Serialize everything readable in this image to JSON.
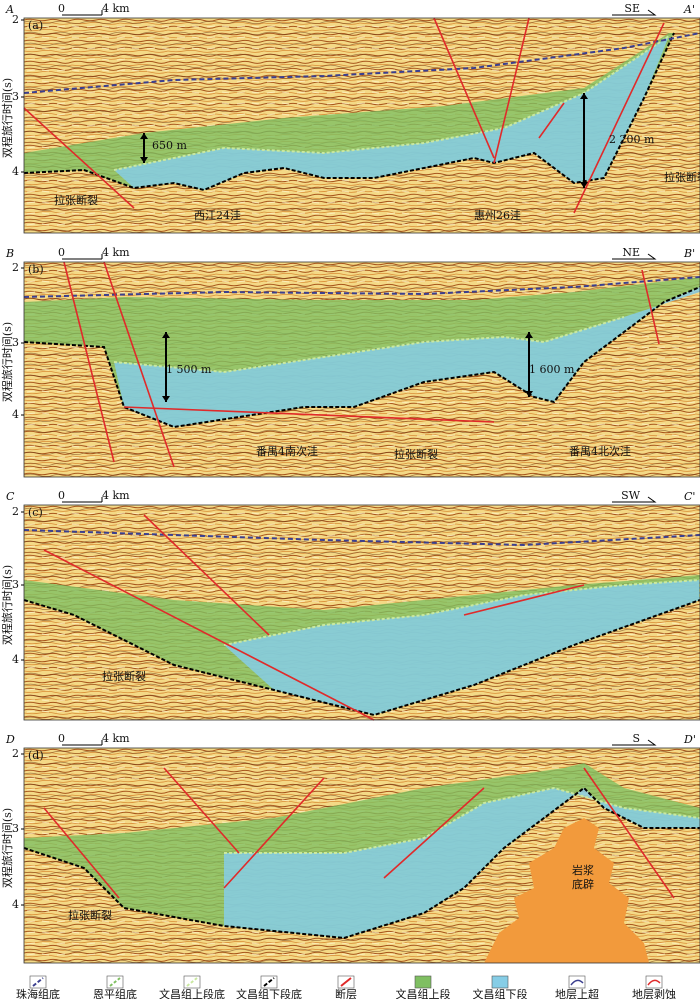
{
  "y_axis_label": "双程旅行时间(s)",
  "panels": [
    {
      "label": "(a)",
      "start": "A",
      "end": "A'",
      "direction": "SE",
      "scale": [
        "0",
        "4 km"
      ],
      "yticks": [
        "2",
        "3",
        "4"
      ],
      "annotations": [
        "650 m",
        "2 200 m",
        "拉张断裂",
        "拉张断裂",
        "西江24洼",
        "惠州26洼"
      ]
    },
    {
      "label": "(b)",
      "start": "B",
      "end": "B'",
      "direction": "NE",
      "scale": [
        "0",
        "4 km"
      ],
      "yticks": [
        "2",
        "3",
        "4"
      ],
      "annotations": [
        "1 500 m",
        "1 600 m",
        "番禺4南次洼",
        "拉张断裂",
        "番禺4北次洼"
      ]
    },
    {
      "label": "(c)",
      "start": "C",
      "end": "C'",
      "direction": "SW",
      "scale": [
        "0",
        "4 km"
      ],
      "yticks": [
        "2",
        "3",
        "4"
      ],
      "annotations": [
        "拉张断裂"
      ]
    },
    {
      "label": "(d)",
      "start": "D",
      "end": "D'",
      "direction": "S",
      "scale": [
        "0",
        "4 km"
      ],
      "yticks": [
        "2",
        "3",
        "4"
      ],
      "annotations": [
        "拉张断裂",
        "岩浆",
        "底辟"
      ]
    }
  ],
  "legend": [
    "珠海组底",
    "恩平组底",
    "文昌组上段底",
    "文昌组下段底",
    "断层",
    "文昌组上段",
    "文昌组下段",
    "地层上超",
    "地层剥蚀"
  ]
}
